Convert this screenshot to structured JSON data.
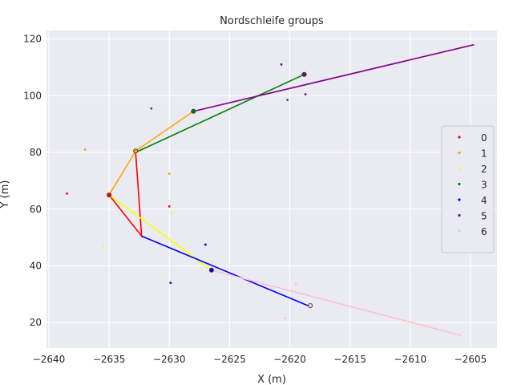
{
  "chart_data": {
    "type": "scatter",
    "title": "Nordschleife groups",
    "xlabel": "X (m)",
    "ylabel": "Y (m)",
    "xlim": [
      -2640.2,
      -2602.8
    ],
    "ylim": [
      11,
      123
    ],
    "xticks": [
      -2640,
      -2635,
      -2630,
      -2625,
      -2620,
      -2615,
      -2610,
      -2605
    ],
    "yticks": [
      20,
      40,
      60,
      80,
      100,
      120
    ],
    "grid": true,
    "legend_position": "right",
    "series": [
      {
        "name": "0",
        "color": "#ff0000",
        "points": [
          [
            -2638.5,
            65.5
          ],
          [
            -2630,
            61
          ]
        ],
        "path": [
          [
            -2635,
            65
          ],
          [
            -2632.3,
            50.5
          ],
          [
            -2632.8,
            80
          ]
        ],
        "markers": [
          [
            -2635,
            65
          ]
        ]
      },
      {
        "name": "1",
        "color": "#ffa500",
        "points": [
          [
            -2637,
            81
          ],
          [
            -2630,
            72.5
          ]
        ],
        "path": [
          [
            -2635,
            65
          ],
          [
            -2632.8,
            80.5
          ],
          [
            -2628,
            94.5
          ]
        ],
        "markers": [
          [
            -2632.8,
            80.5
          ]
        ]
      },
      {
        "name": "2",
        "color": "#ffff00",
        "points": [
          [
            -2635.5,
            47
          ],
          [
            -2629.8,
            58.5
          ]
        ],
        "path": [
          [
            -2635,
            65
          ],
          [
            -2626.5,
            38.5
          ]
        ],
        "markers": []
      },
      {
        "name": "3",
        "color": "#008000",
        "points": [
          [
            -2631.5,
            95.5
          ],
          [
            -2620.2,
            98.5
          ]
        ],
        "path": [
          [
            -2632.8,
            80
          ],
          [
            -2618.8,
            107.5
          ]
        ],
        "markers": [
          [
            -2628,
            94.5
          ]
        ]
      },
      {
        "name": "4",
        "color": "#0000ff",
        "points": [
          [
            -2627,
            47.5
          ],
          [
            -2629.9,
            34
          ]
        ],
        "path": [
          [
            -2632.3,
            50.5
          ],
          [
            -2618.5,
            26
          ]
        ],
        "markers": [
          [
            -2626.5,
            38.5
          ]
        ]
      },
      {
        "name": "5",
        "color": "#800080",
        "points": [
          [
            -2620.7,
            111
          ],
          [
            -2618.7,
            100.5
          ]
        ],
        "path": [
          [
            -2628,
            94.5
          ],
          [
            -2604.7,
            118
          ]
        ],
        "markers": [
          [
            -2618.8,
            107.5
          ]
        ]
      },
      {
        "name": "6",
        "color": "#ffc0cb",
        "points": [
          [
            -2619.5,
            33.5
          ],
          [
            -2620.4,
            21.5
          ]
        ],
        "path": [
          [
            -2626.5,
            38.5
          ],
          [
            -2605.8,
            15.5
          ]
        ],
        "markers": [
          [
            -2618.3,
            26
          ]
        ]
      }
    ]
  }
}
